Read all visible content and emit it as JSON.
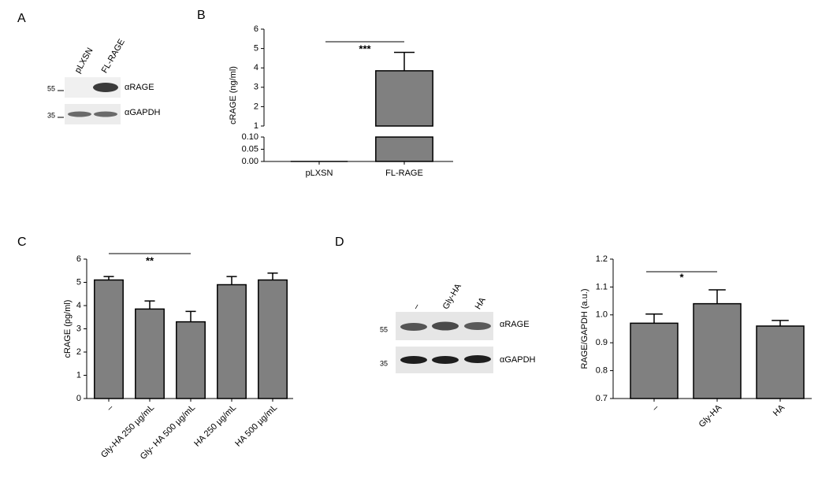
{
  "panels": [
    "A",
    "B",
    "C",
    "D"
  ],
  "blots": [
    {
      "lanes": [
        "pLXSN",
        "FL-RAGE"
      ],
      "markers": [
        55,
        35
      ],
      "bands": [
        "αRAGE",
        "αGAPDH"
      ]
    },
    {
      "lanes": [
        "–",
        "Gly-HA",
        "HA"
      ],
      "markers": [
        55,
        35
      ],
      "bands": [
        "αRAGE",
        "αGAPDH"
      ]
    }
  ],
  "chart_data": [
    {
      "type": "bar",
      "y_label": "cRAGE (ng/ml)",
      "color": "#808080",
      "categories": [
        "pLXSN",
        "FL-RAGE"
      ],
      "values": [
        0,
        3.85
      ],
      "errors": [
        0,
        0.95
      ],
      "axis_segments": [
        {
          "ylim": [
            0,
            0.1
          ],
          "yticks": [
            {
              "value": 0,
              "label": "0.00"
            },
            {
              "value": 0.05,
              "label": "0.05"
            },
            {
              "value": 0.1,
              "label": "0.10"
            }
          ]
        },
        {
          "ylim": [
            1,
            6
          ],
          "yticks": [
            1,
            2,
            3,
            4,
            5,
            6
          ]
        }
      ],
      "annotations": [
        {
          "text": "***",
          "between": [
            "pLXSN",
            "FL-RAGE"
          ]
        }
      ]
    },
    {
      "type": "bar",
      "y_label": "cRAGE (pg/ml)",
      "color": "#808080",
      "categories": [
        "–",
        "Gly-HA 250 µg/mL",
        "Gly- HA 500 µg/mL",
        "HA 250 µg/mL",
        "HA 500 µg/mL"
      ],
      "values": [
        5.1,
        3.85,
        3.3,
        4.9,
        5.1
      ],
      "errors": [
        0.15,
        0.35,
        0.45,
        0.35,
        0.3
      ],
      "ylim": [
        0,
        6
      ],
      "yticks": [
        0,
        1,
        2,
        3,
        4,
        5,
        6
      ],
      "annotations": [
        {
          "text": "**",
          "between": [
            "–",
            "Gly- HA 500 µg/mL"
          ]
        }
      ]
    },
    {
      "type": "bar",
      "y_label": "RAGE/GAPDH (a.u.)",
      "color": "#808080",
      "categories": [
        "–",
        "Gly-HA",
        "HA"
      ],
      "values": [
        0.97,
        1.04,
        0.96
      ],
      "errors": [
        0.033,
        0.05,
        0.02
      ],
      "ylim": [
        0.7,
        1.2
      ],
      "yticks": [
        0.7,
        0.8,
        0.9,
        {
          "value": 1.0,
          "label": "1.0"
        },
        1.1,
        1.2
      ],
      "annotations": [
        {
          "text": "*",
          "between": [
            "–",
            "Gly-HA"
          ]
        }
      ]
    }
  ]
}
